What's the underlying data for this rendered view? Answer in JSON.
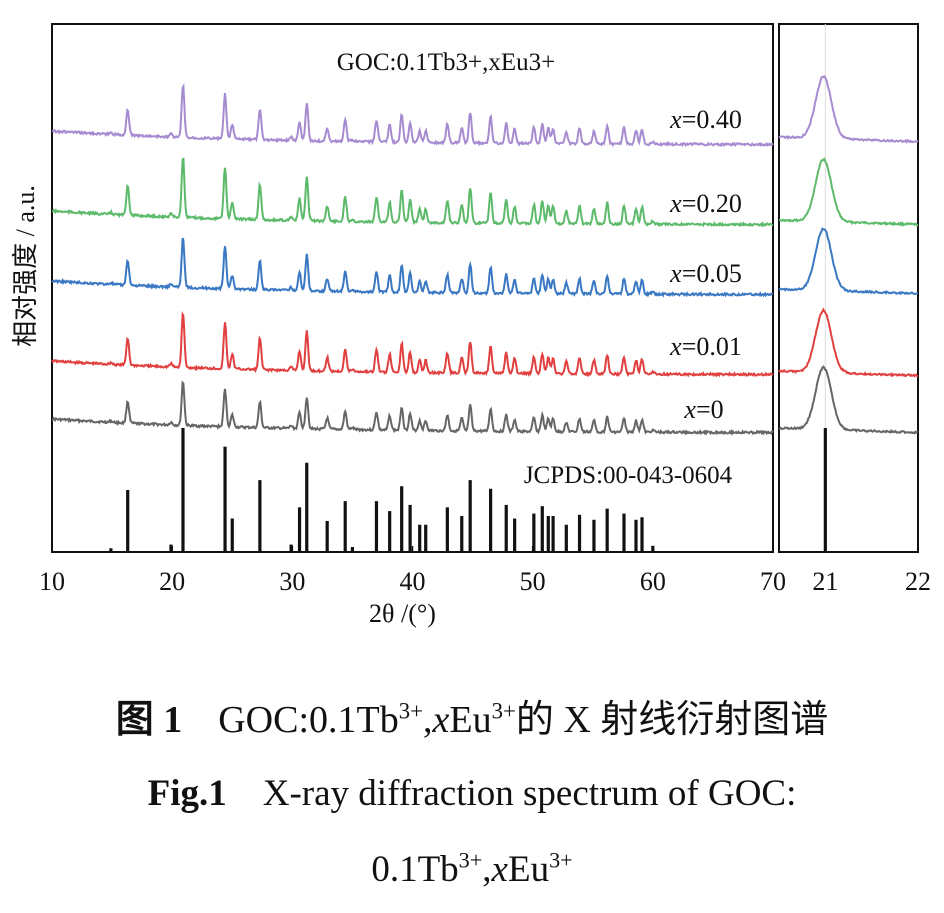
{
  "chart_data": {
    "type": "line",
    "ylabel": "相对强度 / a.u.",
    "xlabel": "2θ /(°)",
    "inset_title": "GOC:0.1Tb3+,xEu3+",
    "reference_label": "JCPDS:00-043-0604",
    "main_panel": {
      "xlim": [
        10,
        70
      ],
      "xticks": [
        10,
        20,
        30,
        40,
        50,
        60,
        70
      ]
    },
    "zoom_panel": {
      "xlim": [
        20.5,
        22
      ],
      "xticks": [
        21,
        22
      ]
    },
    "series": [
      {
        "name": "x=0",
        "label_var": "x",
        "label_val": "=0",
        "color": "#666666"
      },
      {
        "name": "x=0.01",
        "label_var": "x",
        "label_val": "=0.01",
        "color": "#e0403f"
      },
      {
        "name": "x=0.05",
        "label_var": "x",
        "label_val": "=0.05",
        "color": "#3a78c3"
      },
      {
        "name": "x=0.20",
        "label_var": "x",
        "label_val": "=0.20",
        "color": "#5cba6a"
      },
      {
        "name": "x=0.40",
        "label_var": "x",
        "label_val": "=0.40",
        "color": "#a78bd0"
      }
    ],
    "reference_peaks": [
      [
        14.9,
        0.03
      ],
      [
        16.3,
        0.5
      ],
      [
        19.9,
        0.06
      ],
      [
        20.9,
        1.0
      ],
      [
        24.4,
        0.85
      ],
      [
        25.0,
        0.27
      ],
      [
        27.3,
        0.58
      ],
      [
        29.9,
        0.06
      ],
      [
        30.6,
        0.36
      ],
      [
        31.2,
        0.72
      ],
      [
        32.9,
        0.25
      ],
      [
        34.4,
        0.41
      ],
      [
        35.0,
        0.04
      ],
      [
        37.0,
        0.41
      ],
      [
        38.1,
        0.33
      ],
      [
        39.1,
        0.53
      ],
      [
        39.8,
        0.38
      ],
      [
        40.6,
        0.22
      ],
      [
        41.1,
        0.22
      ],
      [
        42.9,
        0.36
      ],
      [
        44.1,
        0.29
      ],
      [
        44.8,
        0.58
      ],
      [
        46.5,
        0.51
      ],
      [
        47.8,
        0.38
      ],
      [
        48.5,
        0.27
      ],
      [
        50.1,
        0.31
      ],
      [
        50.8,
        0.37
      ],
      [
        51.3,
        0.29
      ],
      [
        51.7,
        0.29
      ],
      [
        52.8,
        0.22
      ],
      [
        53.9,
        0.3
      ],
      [
        55.1,
        0.26
      ],
      [
        56.2,
        0.35
      ],
      [
        57.6,
        0.31
      ],
      [
        58.6,
        0.26
      ],
      [
        59.1,
        0.28
      ],
      [
        60.0,
        0.05
      ]
    ],
    "zoom_reference_peaks": [
      [
        21.0,
        1.0
      ]
    ]
  },
  "caption": {
    "zh_label": "图 1",
    "zh_text_a": "GOC:0.1Tb",
    "zh_sup1": "3+",
    "zh_text_b": ",",
    "zh_var": "x",
    "zh_text_c": "Eu",
    "zh_sup2": "3+",
    "zh_text_d": "的 X 射线衍射图谱",
    "en_label": "Fig.1",
    "en_text": "X-ray diffraction spectrum of GOC:",
    "en2_text_a": "0.1Tb",
    "en2_sup1": "3+",
    "en2_text_b": ",",
    "en2_var": "x",
    "en2_text_c": "Eu",
    "en2_sup2": "3+"
  }
}
